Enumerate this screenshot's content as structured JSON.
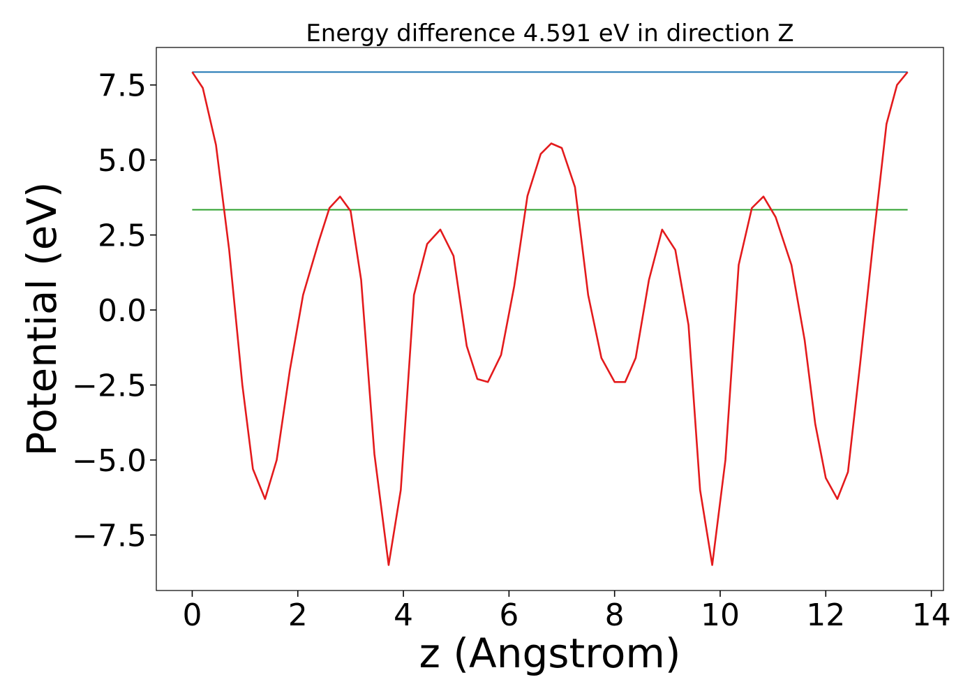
{
  "chart_data": {
    "type": "line",
    "title": "Energy difference 4.591 eV in direction Z",
    "xlabel": "z (Angstrom)",
    "ylabel": "Potential (eV)",
    "xlim": [
      -0.68,
      14.23
    ],
    "ylim": [
      -9.35,
      8.75
    ],
    "x_ticks": [
      0,
      2,
      4,
      6,
      8,
      10,
      12,
      14
    ],
    "x_tick_labels": [
      "0",
      "2",
      "4",
      "6",
      "8",
      "10",
      "12",
      "14"
    ],
    "y_ticks": [
      7.5,
      5.0,
      2.5,
      0.0,
      -2.5,
      -5.0,
      -7.5
    ],
    "y_tick_labels": [
      "7.5",
      "5.0",
      "2.5",
      "0.0",
      "−2.5",
      "−5.0",
      "−7.5"
    ],
    "grid": false,
    "series": [
      {
        "color": "#1f77b4",
        "x": [
          0,
          13.55
        ],
        "y": [
          7.93,
          7.93
        ]
      },
      {
        "color": "#2ca02c",
        "x": [
          0,
          13.55
        ],
        "y": [
          3.34,
          3.34
        ]
      },
      {
        "color": "#e31a1c",
        "x": [
          0,
          0.2,
          0.45,
          0.7,
          0.95,
          1.15,
          1.38,
          1.6,
          1.85,
          2.1,
          2.4,
          2.6,
          2.8,
          3.0,
          3.2,
          3.45,
          3.72,
          3.95,
          4.2,
          4.45,
          4.7,
          4.95,
          5.2,
          5.4,
          5.6,
          5.85,
          6.1,
          6.35,
          6.6,
          6.8,
          7.0,
          7.25,
          7.5,
          7.75,
          8.0,
          8.2,
          8.4,
          8.65,
          8.9,
          9.15,
          9.4,
          9.62,
          9.85,
          10.1,
          10.35,
          10.6,
          10.82,
          11.05,
          11.35,
          11.6,
          11.8,
          12.0,
          12.22,
          12.42,
          12.65,
          12.9,
          13.15,
          13.35,
          13.55
        ],
        "y": [
          7.93,
          7.4,
          5.5,
          2.0,
          -2.5,
          -5.3,
          -6.3,
          -5.0,
          -2.0,
          0.5,
          2.3,
          3.4,
          3.78,
          3.3,
          1.0,
          -4.8,
          -8.5,
          -6.0,
          0.5,
          2.2,
          2.68,
          1.8,
          -1.2,
          -2.3,
          -2.4,
          -1.5,
          0.8,
          3.8,
          5.2,
          5.55,
          5.4,
          4.1,
          0.5,
          -1.6,
          -2.4,
          -2.4,
          -1.6,
          1.0,
          2.68,
          2.0,
          -0.5,
          -6.0,
          -8.5,
          -5.0,
          1.5,
          3.4,
          3.78,
          3.1,
          1.5,
          -1.0,
          -3.8,
          -5.6,
          -6.3,
          -5.4,
          -1.8,
          2.3,
          6.2,
          7.5,
          7.93
        ]
      }
    ]
  }
}
